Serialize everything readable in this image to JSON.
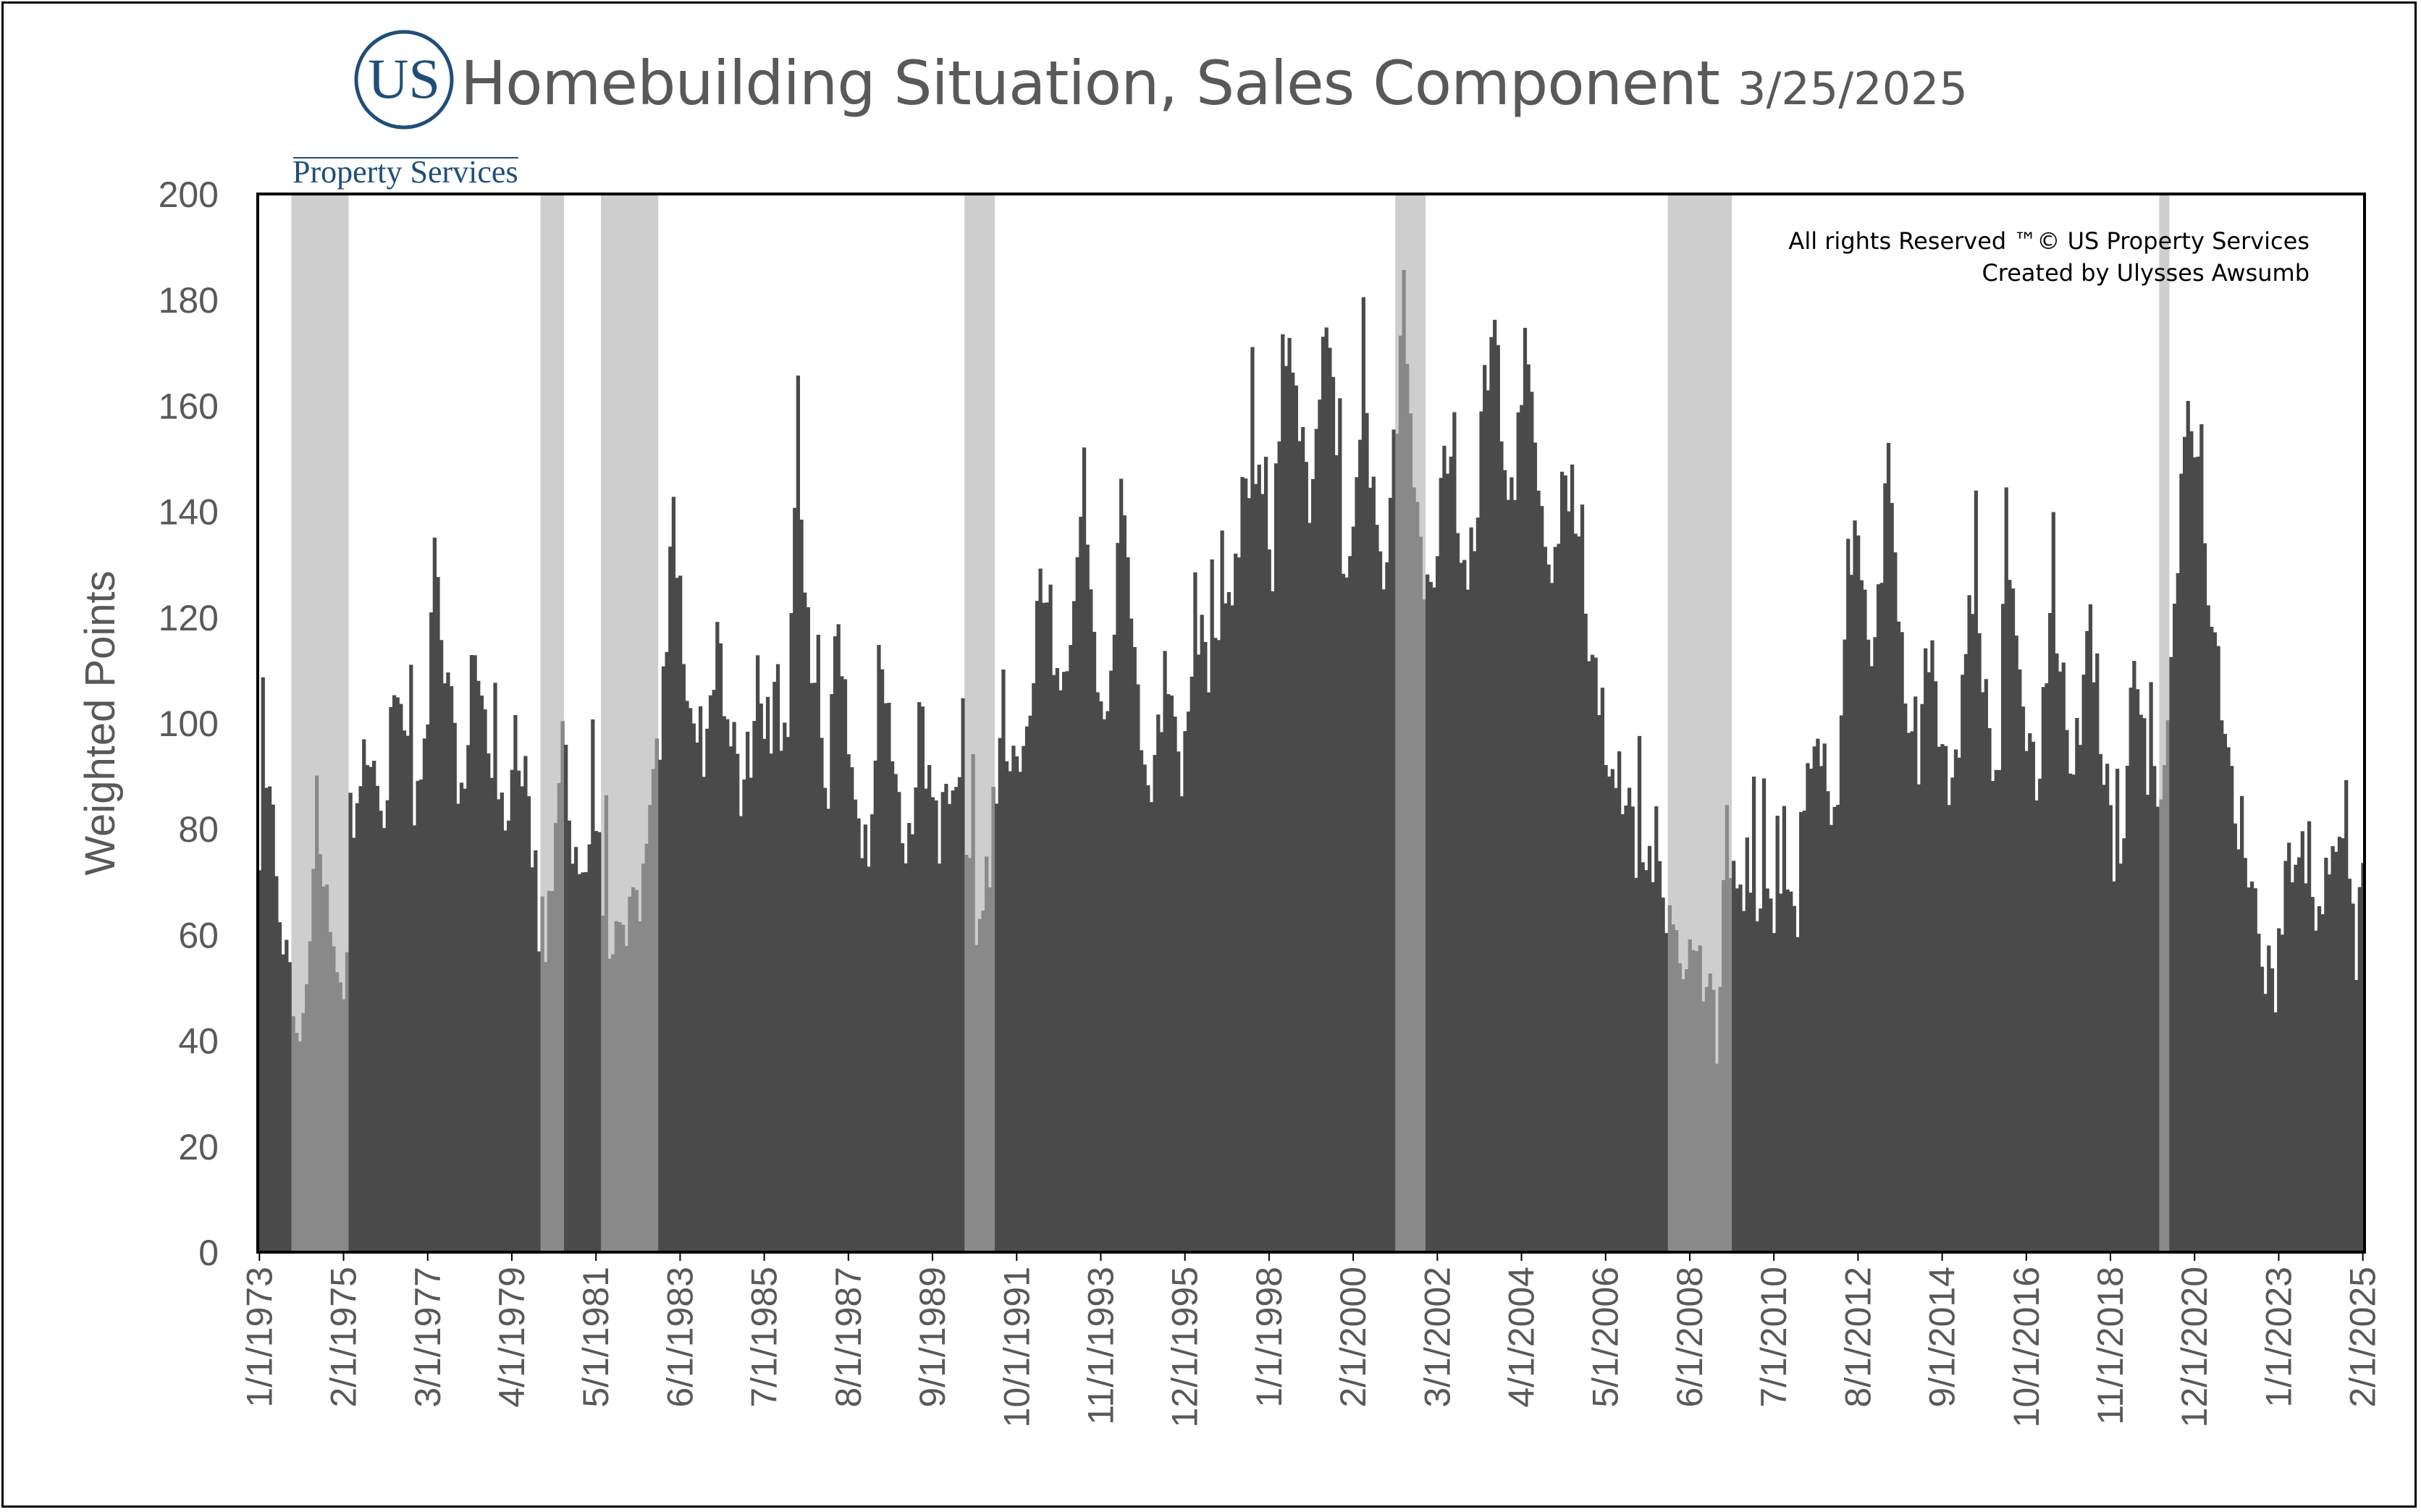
{
  "logo": {
    "mark": "US",
    "name": "Property Services",
    "color": "#1f4e79"
  },
  "header": {
    "title": "Homebuilding Situation, Sales Component",
    "date": "3/25/2025"
  },
  "copyright": {
    "line1": "All rights Reserved ™© US Property Services",
    "line2": "Created by Ulysses Awsumb"
  },
  "colors": {
    "bar": "#4a4a4a",
    "recession_shade": "#c6c6c6",
    "axis_text": "#595959"
  },
  "chart_data": {
    "type": "bar",
    "title": "Homebuilding Situation, Sales Component",
    "xlabel": "",
    "ylabel": "Weighted Points",
    "ylim": [
      0,
      200
    ],
    "yticks": [
      0,
      20,
      40,
      60,
      80,
      100,
      120,
      140,
      160,
      180,
      200
    ],
    "x_start": "1/1/1973",
    "x_end": "2/1/2025",
    "frequency": "monthly",
    "xtick_labels": [
      "1/1/1973",
      "2/1/1975",
      "3/1/1977",
      "4/1/1979",
      "5/1/1981",
      "6/1/1983",
      "7/1/1985",
      "8/1/1987",
      "9/1/1989",
      "10/1/1991",
      "11/1/1993",
      "12/1/1995",
      "1/1/1998",
      "2/1/2000",
      "3/1/2002",
      "4/1/2004",
      "5/1/2006",
      "6/1/2008",
      "7/1/2010",
      "8/1/2012",
      "9/1/2014",
      "10/1/2016",
      "11/1/2018",
      "12/1/2020",
      "1/1/2023",
      "2/1/2025"
    ],
    "recessions": [
      {
        "start": "1973-11",
        "end": "1975-03"
      },
      {
        "start": "1980-01",
        "end": "1980-07"
      },
      {
        "start": "1981-07",
        "end": "1982-11"
      },
      {
        "start": "1990-07",
        "end": "1991-03"
      },
      {
        "start": "2001-03",
        "end": "2001-11"
      },
      {
        "start": "2007-12",
        "end": "2009-06"
      },
      {
        "start": "2020-02",
        "end": "2020-04"
      }
    ],
    "anchors": [
      [
        "1973-01",
        70
      ],
      [
        "1973-02",
        88
      ],
      [
        "1973-05",
        80
      ],
      [
        "1973-08",
        60
      ],
      [
        "1973-11",
        45
      ],
      [
        "1974-02",
        40
      ],
      [
        "1974-05",
        75
      ],
      [
        "1974-08",
        70
      ],
      [
        "1974-11",
        55
      ],
      [
        "1975-02",
        45
      ],
      [
        "1975-05",
        85
      ],
      [
        "1975-08",
        100
      ],
      [
        "1975-11",
        88
      ],
      [
        "1976-02",
        80
      ],
      [
        "1976-05",
        105
      ],
      [
        "1976-08",
        100
      ],
      [
        "1976-11",
        85
      ],
      [
        "1977-02",
        90
      ],
      [
        "1977-05",
        130
      ],
      [
        "1977-08",
        110
      ],
      [
        "1977-11",
        95
      ],
      [
        "1978-02",
        85
      ],
      [
        "1978-05",
        118
      ],
      [
        "1978-08",
        100
      ],
      [
        "1978-11",
        88
      ],
      [
        "1979-02",
        80
      ],
      [
        "1979-05",
        100
      ],
      [
        "1979-08",
        90
      ],
      [
        "1979-11",
        70
      ],
      [
        "1980-01",
        55
      ],
      [
        "1980-04",
        65
      ],
      [
        "1980-07",
        100
      ],
      [
        "1980-10",
        80
      ],
      [
        "1981-01",
        70
      ],
      [
        "1981-04",
        82
      ],
      [
        "1981-07",
        70
      ],
      [
        "1981-10",
        58
      ],
      [
        "1982-01",
        55
      ],
      [
        "1982-04",
        65
      ],
      [
        "1982-07",
        70
      ],
      [
        "1982-10",
        85
      ],
      [
        "1983-01",
        105
      ],
      [
        "1983-04",
        140
      ],
      [
        "1983-07",
        115
      ],
      [
        "1983-10",
        100
      ],
      [
        "1984-02",
        95
      ],
      [
        "1984-05",
        120
      ],
      [
        "1984-08",
        100
      ],
      [
        "1984-11",
        90
      ],
      [
        "1985-02",
        80
      ],
      [
        "1985-05",
        110
      ],
      [
        "1985-08",
        100
      ],
      [
        "1985-11",
        90
      ],
      [
        "1986-02",
        95
      ],
      [
        "1986-05",
        160
      ],
      [
        "1986-08",
        115
      ],
      [
        "1986-11",
        95
      ],
      [
        "1987-02",
        90
      ],
      [
        "1987-05",
        122
      ],
      [
        "1987-08",
        100
      ],
      [
        "1987-11",
        85
      ],
      [
        "1988-02",
        70
      ],
      [
        "1988-05",
        112
      ],
      [
        "1988-08",
        100
      ],
      [
        "1988-11",
        88
      ],
      [
        "1989-02",
        75
      ],
      [
        "1989-05",
        100
      ],
      [
        "1989-08",
        90
      ],
      [
        "1989-11",
        80
      ],
      [
        "1990-02",
        85
      ],
      [
        "1990-05",
        90
      ],
      [
        "1990-08",
        70
      ],
      [
        "1990-11",
        60
      ],
      [
        "1991-02",
        75
      ],
      [
        "1991-05",
        100
      ],
      [
        "1991-08",
        95
      ],
      [
        "1991-11",
        88
      ],
      [
        "1992-02",
        100
      ],
      [
        "1992-05",
        125
      ],
      [
        "1992-08",
        120
      ],
      [
        "1992-11",
        108
      ],
      [
        "1993-02",
        110
      ],
      [
        "1993-05",
        145
      ],
      [
        "1993-08",
        120
      ],
      [
        "1993-11",
        100
      ],
      [
        "1994-02",
        110
      ],
      [
        "1994-05",
        150
      ],
      [
        "1994-08",
        115
      ],
      [
        "1994-11",
        100
      ],
      [
        "1995-02",
        80
      ],
      [
        "1995-05",
        105
      ],
      [
        "1995-08",
        110
      ],
      [
        "1995-11",
        90
      ],
      [
        "1996-02",
        110
      ],
      [
        "1996-05",
        118
      ],
      [
        "1996-08",
        110
      ],
      [
        "1996-11",
        115
      ],
      [
        "1997-02",
        120
      ],
      [
        "1997-05",
        140
      ],
      [
        "1997-08",
        150
      ],
      [
        "1997-11",
        140
      ],
      [
        "1998-02",
        130
      ],
      [
        "1998-05",
        170
      ],
      [
        "1998-08",
        172
      ],
      [
        "1998-11",
        150
      ],
      [
        "1999-02",
        140
      ],
      [
        "1999-05",
        175
      ],
      [
        "1999-08",
        160
      ],
      [
        "1999-11",
        130
      ],
      [
        "2000-02",
        140
      ],
      [
        "2000-05",
        165
      ],
      [
        "2000-08",
        140
      ],
      [
        "2000-11",
        120
      ],
      [
        "2001-02",
        150
      ],
      [
        "2001-05",
        185
      ],
      [
        "2001-08",
        150
      ],
      [
        "2001-11",
        130
      ],
      [
        "2002-02",
        125
      ],
      [
        "2002-05",
        155
      ],
      [
        "2002-08",
        140
      ],
      [
        "2002-11",
        125
      ],
      [
        "2003-02",
        135
      ],
      [
        "2003-05",
        165
      ],
      [
        "2003-08",
        175
      ],
      [
        "2003-11",
        150
      ],
      [
        "2004-02",
        140
      ],
      [
        "2004-05",
        180
      ],
      [
        "2004-08",
        160
      ],
      [
        "2004-11",
        130
      ],
      [
        "2005-02",
        130
      ],
      [
        "2005-05",
        150
      ],
      [
        "2005-08",
        140
      ],
      [
        "2005-11",
        120
      ],
      [
        "2006-02",
        110
      ],
      [
        "2006-05",
        95
      ],
      [
        "2006-08",
        92
      ],
      [
        "2006-11",
        85
      ],
      [
        "2007-02",
        75
      ],
      [
        "2007-05",
        70
      ],
      [
        "2007-08",
        80
      ],
      [
        "2007-11",
        65
      ],
      [
        "2008-02",
        55
      ],
      [
        "2008-05",
        58
      ],
      [
        "2008-08",
        60
      ],
      [
        "2008-11",
        50
      ],
      [
        "2009-02",
        42
      ],
      [
        "2009-05",
        60
      ],
      [
        "2009-08",
        75
      ],
      [
        "2009-11",
        68
      ],
      [
        "2010-02",
        65
      ],
      [
        "2010-05",
        70
      ],
      [
        "2010-08",
        65
      ],
      [
        "2010-11",
        68
      ],
      [
        "2011-02",
        65
      ],
      [
        "2011-05",
        90
      ],
      [
        "2011-08",
        95
      ],
      [
        "2011-11",
        88
      ],
      [
        "2012-02",
        85
      ],
      [
        "2012-05",
        130
      ],
      [
        "2012-08",
        135
      ],
      [
        "2012-11",
        115
      ],
      [
        "2013-02",
        120
      ],
      [
        "2013-05",
        152
      ],
      [
        "2013-08",
        120
      ],
      [
        "2013-11",
        100
      ],
      [
        "2014-02",
        95
      ],
      [
        "2014-05",
        115
      ],
      [
        "2014-08",
        100
      ],
      [
        "2014-11",
        90
      ],
      [
        "2015-02",
        100
      ],
      [
        "2015-05",
        130
      ],
      [
        "2015-08",
        120
      ],
      [
        "2015-11",
        95
      ],
      [
        "2016-02",
        95
      ],
      [
        "2016-05",
        128
      ],
      [
        "2016-08",
        110
      ],
      [
        "2016-11",
        95
      ],
      [
        "2017-02",
        90
      ],
      [
        "2017-05",
        125
      ],
      [
        "2017-08",
        110
      ],
      [
        "2017-11",
        95
      ],
      [
        "2018-02",
        95
      ],
      [
        "2018-05",
        120
      ],
      [
        "2018-08",
        100
      ],
      [
        "2018-11",
        80
      ],
      [
        "2019-02",
        70
      ],
      [
        "2019-05",
        112
      ],
      [
        "2019-08",
        100
      ],
      [
        "2019-11",
        90
      ],
      [
        "2020-02",
        85
      ],
      [
        "2020-04",
        105
      ],
      [
        "2020-06",
        120
      ],
      [
        "2020-09",
        160
      ],
      [
        "2020-12",
        150
      ],
      [
        "2021-03",
        135
      ],
      [
        "2021-06",
        115
      ],
      [
        "2021-09",
        95
      ],
      [
        "2021-12",
        85
      ],
      [
        "2022-03",
        78
      ],
      [
        "2022-06",
        65
      ],
      [
        "2022-09",
        55
      ],
      [
        "2022-12",
        52
      ],
      [
        "2023-03",
        70
      ],
      [
        "2023-06",
        80
      ],
      [
        "2023-09",
        70
      ],
      [
        "2023-12",
        62
      ],
      [
        "2024-03",
        75
      ],
      [
        "2024-06",
        80
      ],
      [
        "2024-09",
        70
      ],
      [
        "2024-12",
        58
      ],
      [
        "2025-02",
        68
      ]
    ]
  }
}
